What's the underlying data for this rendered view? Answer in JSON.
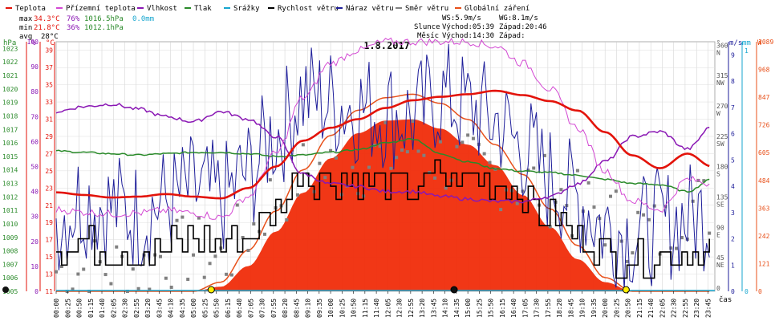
{
  "chart_data": {
    "type": "line",
    "title": "1.8.2017",
    "xlabel": "čas",
    "legend": [
      {
        "label": "Teplota",
        "color": "#e3130a"
      },
      {
        "label": "Přízemní teplota",
        "color": "#d348d3"
      },
      {
        "label": "Vlhkost",
        "color": "#8a17b4"
      },
      {
        "label": "Tlak",
        "color": "#2a8a2a"
      },
      {
        "label": "Srážky",
        "color": "#17a6cf"
      },
      {
        "label": "Rychlost větru",
        "color": "#000000"
      },
      {
        "label": "Náraz větru",
        "color": "#1e1e9a"
      },
      {
        "label": "Směr větru",
        "color": "#808080"
      },
      {
        "label": "Globální záření",
        "color": "#e8501a"
      }
    ],
    "stats": {
      "max": {
        "label": "max",
        "temp": "34.3°C",
        "hum": "76%",
        "press": "1016.5hPa",
        "rain": "0.0mm"
      },
      "min": {
        "label": "min",
        "temp": "21.8°C",
        "hum": "36%",
        "press": "1012.1hPa"
      },
      "avg": {
        "label": "avg",
        "temp": "28°C"
      }
    },
    "info": {
      "ws": "WS:5.9m/s",
      "wg": "WG:8.1m/s",
      "sun_label": "Slunce",
      "sun_rise": "Východ:05:39",
      "sun_set": "Západ:20:46",
      "moon_label": "Měsíc",
      "moon_rise": "Východ:14:30",
      "moon_set": "Západ:"
    },
    "axes": {
      "hpa": {
        "unit": "hPa",
        "ticks": [
          "1023",
          "1022",
          "1021",
          "1020",
          "1019",
          "1018",
          "1017",
          "1016",
          "1015",
          "1014",
          "1013",
          "1012",
          "1011",
          "1010",
          "1009",
          "1008",
          "1007",
          "1006",
          "1005"
        ],
        "range": [
          1005,
          1023.5
        ]
      },
      "pct": {
        "unit": "%",
        "ticks": [
          "100",
          "90",
          "80",
          "70",
          "60",
          "50",
          "40",
          "30",
          "20",
          "10",
          "0"
        ],
        "range": [
          0,
          100
        ]
      },
      "temp": {
        "unit": "°C",
        "ticks": [
          "39",
          "37",
          "35",
          "33",
          "31",
          "29",
          "27",
          "25",
          "23",
          "21",
          "19",
          "17",
          "15",
          "13",
          "11"
        ],
        "range": [
          11,
          40
        ]
      },
      "dir": {
        "ticks": [
          "360",
          "315",
          "270",
          "225",
          "180",
          "135",
          "90",
          "45",
          "0"
        ],
        "letters": [
          "N",
          "NW",
          "W",
          "SW",
          "S",
          "SE",
          "E",
          "NE",
          ""
        ]
      },
      "ms": {
        "unit": "m/s",
        "ticks": [
          "9",
          "8",
          "7",
          "6",
          "5",
          "4",
          "3",
          "2",
          "1",
          "0"
        ],
        "range": [
          0,
          9.5
        ]
      },
      "mm": {
        "unit": "mm",
        "ticks": [
          "1",
          "0"
        ]
      },
      "wm2": {
        "unit": "W",
        "ticks": [
          "1089",
          "968",
          "847",
          "726",
          "605",
          "484",
          "363",
          "242",
          "121",
          "0"
        ],
        "range": [
          0,
          1089
        ]
      }
    },
    "x_ticks": [
      "00:00",
      "00:25",
      "00:50",
      "01:15",
      "01:40",
      "02:05",
      "02:30",
      "02:55",
      "03:20",
      "03:45",
      "04:10",
      "04:35",
      "05:00",
      "05:25",
      "05:50",
      "06:15",
      "06:40",
      "07:05",
      "07:30",
      "07:55",
      "08:20",
      "08:45",
      "09:10",
      "09:35",
      "10:00",
      "10:25",
      "10:50",
      "11:15",
      "11:40",
      "12:05",
      "12:30",
      "12:55",
      "13:20",
      "13:45",
      "14:10",
      "14:35",
      "15:00",
      "15:25",
      "15:50",
      "16:15",
      "16:40",
      "17:05",
      "17:30",
      "17:55",
      "18:20",
      "18:45",
      "19:10",
      "19:35",
      "20:00",
      "20:25",
      "20:50",
      "21:15",
      "21:40",
      "22:05",
      "22:30",
      "22:55",
      "23:20",
      "23:45"
    ],
    "series_hourly": {
      "hours": [
        0,
        1,
        2,
        3,
        4,
        5,
        6,
        7,
        8,
        9,
        10,
        11,
        12,
        13,
        14,
        15,
        16,
        17,
        18,
        19,
        20,
        21,
        22,
        23,
        23.9
      ],
      "teplota": [
        22.5,
        22.2,
        21.9,
        22.0,
        22.3,
        22.0,
        21.8,
        23.0,
        25.5,
        28.5,
        30.0,
        31.0,
        32.3,
        33.2,
        33.6,
        33.9,
        34.3,
        33.8,
        33.1,
        32.0,
        29.5,
        26.8,
        25.3,
        27.0,
        25.5
      ],
      "prizemni": [
        20.5,
        20.2,
        20.0,
        20.1,
        20.4,
        20.1,
        19.6,
        22.0,
        27.0,
        33.5,
        37.5,
        39.0,
        40.0,
        40.0,
        40.0,
        40.0,
        39.5,
        37.5,
        34.5,
        30.0,
        25.0,
        21.5,
        20.5,
        24.0,
        23.5
      ],
      "vlhkost": [
        72,
        74,
        75,
        73,
        70,
        68,
        72,
        69,
        62,
        47,
        43,
        42,
        40,
        40,
        38,
        37,
        36,
        36,
        38,
        43,
        52,
        62,
        64,
        57,
        66
      ],
      "tlak": [
        1015.4,
        1015.3,
        1015.2,
        1015.1,
        1015.2,
        1015.3,
        1015.3,
        1015.2,
        1015.0,
        1015.1,
        1015.3,
        1015.5,
        1016.0,
        1016.3,
        1015.2,
        1014.6,
        1014.1,
        1013.9,
        1013.8,
        1013.6,
        1013.3,
        1013.0,
        1012.9,
        1012.4,
        1013.3
      ],
      "radiation": [
        0,
        0,
        0,
        0,
        0,
        0,
        20,
        110,
        260,
        430,
        580,
        690,
        745,
        750,
        710,
        640,
        550,
        420,
        280,
        140,
        40,
        0,
        0,
        0,
        0
      ],
      "clear_sky": [
        0,
        0,
        0,
        0,
        0,
        0,
        40,
        180,
        350,
        530,
        680,
        790,
        845,
        860,
        820,
        750,
        640,
        510,
        360,
        200,
        60,
        0,
        0,
        0,
        0
      ]
    },
    "wind_speed_hourly": [
      1.5,
      1.8,
      1.6,
      1.4,
      1.7,
      2.0,
      1.8,
      2.2,
      3.2,
      4.5,
      4.3,
      4.2,
      4.1,
      4.0,
      4.4,
      4.2,
      4.0,
      3.6,
      2.8,
      2.2,
      1.5,
      1.2,
      1.3,
      1.4,
      1.5
    ],
    "wind_gust_hourly": [
      2.8,
      3.5,
      3.2,
      2.9,
      3.4,
      3.8,
      3.5,
      4.5,
      6.0,
      7.5,
      7.2,
      7.0,
      6.8,
      6.6,
      7.4,
      7.0,
      6.5,
      5.5,
      4.3,
      3.5,
      2.5,
      2.2,
      2.5,
      2.8,
      3.0
    ],
    "wind_dir_hourly": [
      30,
      32,
      35,
      33,
      55,
      60,
      45,
      90,
      140,
      175,
      180,
      190,
      200,
      215,
      195,
      180,
      175,
      160,
      150,
      125,
      110,
      95,
      85,
      130,
      125
    ],
    "markers": {
      "sunrise": "05:39",
      "sunset": "20:46",
      "moonrise": "14:30",
      "moon_icon": "🌙"
    }
  }
}
